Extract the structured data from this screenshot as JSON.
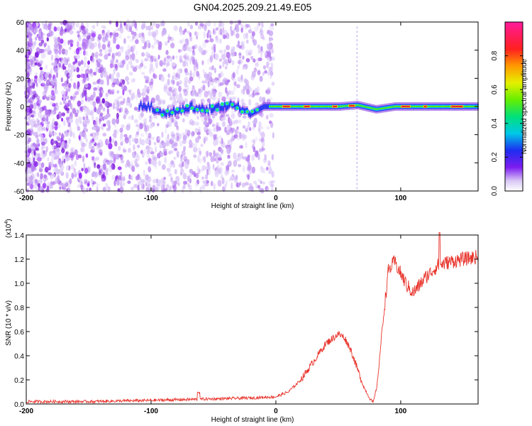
{
  "figure_title": "GN04.2025.209.21.49.E05",
  "chart_data": [
    {
      "type": "heatmap",
      "xlabel": "Height of straight line (km)",
      "ylabel": "Frequency (Hz)",
      "xlim": [
        -200,
        162
      ],
      "ylim": [
        -60,
        60
      ],
      "x_ticks": [
        -200,
        -100,
        0,
        100
      ],
      "x_tick_labels": [
        "-200",
        "-100",
        "0",
        "100"
      ],
      "y_ticks": [
        -60,
        -40,
        -20,
        0,
        20,
        40,
        60
      ],
      "y_tick_labels": [
        "-60",
        "-40",
        "-20",
        "0",
        "20",
        "40",
        "60"
      ],
      "colorbar": {
        "label": "Normalized spectral amplitude",
        "range": [
          0,
          1
        ],
        "ticks": [
          0.0,
          0.2,
          0.4,
          0.6,
          0.8
        ],
        "tick_labels": [
          "0.0",
          "0.2",
          "0.4",
          "0.6",
          "0.8"
        ],
        "colormap": "rainbow (purple-blue-cyan-green-yellow-red-magenta)"
      },
      "description_points": {
        "line_center_freq": [
          {
            "x": -100,
            "y": -4
          },
          {
            "x": -80,
            "y": -4
          },
          {
            "x": -70,
            "y": 0
          },
          {
            "x": -55,
            "y": -2
          },
          {
            "x": -40,
            "y": 1
          },
          {
            "x": -25,
            "y": -2
          },
          {
            "x": -20,
            "y": -5
          },
          {
            "x": -10,
            "y": 0
          },
          {
            "x": 0,
            "y": 0
          },
          {
            "x": 50,
            "y": 0
          },
          {
            "x": 65,
            "y": 1
          },
          {
            "x": 80,
            "y": -2
          },
          {
            "x": 95,
            "y": 0
          },
          {
            "x": 130,
            "y": 0
          },
          {
            "x": 162,
            "y": 0
          }
        ],
        "vertical_artifact_x": 65
      }
    },
    {
      "type": "line",
      "xlabel": "Height of straight line (km)",
      "ylabel": "SNR (10 * v/v)",
      "y_scale_label": "(x10",
      "y_scale_exponent": "4",
      "y_scale_suffix": ")",
      "xlim": [
        -200,
        162
      ],
      "ylim": [
        0,
        1.4
      ],
      "x_ticks": [
        -200,
        -100,
        0,
        100
      ],
      "x_tick_labels": [
        "-200",
        "-100",
        "0",
        "100"
      ],
      "y_ticks": [
        0.0,
        0.2,
        0.4,
        0.6,
        0.8,
        1.0,
        1.2,
        1.4
      ],
      "y_tick_labels": [
        "0.0",
        "0.2",
        "0.4",
        "0.6",
        "0.8",
        "1.0",
        "1.2",
        "1.4"
      ],
      "series": [
        {
          "color": "#e8342c",
          "x": [
            -200,
            -150,
            -100,
            -60,
            -20,
            0,
            10,
            20,
            30,
            40,
            50,
            55,
            60,
            65,
            70,
            75,
            78,
            81,
            85,
            90,
            95,
            100,
            105,
            110,
            120,
            130,
            140,
            150,
            162
          ],
          "y": [
            0.02,
            0.02,
            0.03,
            0.04,
            0.05,
            0.06,
            0.1,
            0.2,
            0.35,
            0.5,
            0.58,
            0.55,
            0.45,
            0.3,
            0.15,
            0.05,
            0.01,
            0.15,
            0.6,
            1.1,
            1.18,
            1.08,
            0.98,
            0.92,
            1.05,
            1.15,
            1.18,
            1.2,
            1.22
          ]
        }
      ]
    }
  ]
}
